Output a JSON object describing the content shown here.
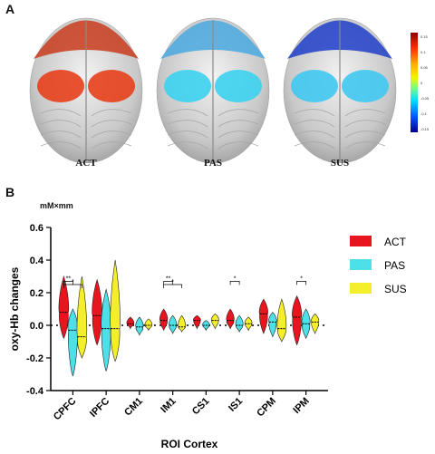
{
  "panel_a": {
    "label": "A",
    "brains": [
      {
        "condition": "ACT",
        "front_color": "#c83c1e",
        "roi_color": "#e8401c"
      },
      {
        "condition": "PAS",
        "front_color": "#4aa8e0",
        "roi_color": "#3cd2f0"
      },
      {
        "condition": "SUS",
        "front_color": "#2040c8",
        "roi_color": "#40c8f0"
      }
    ],
    "colorbar": {
      "ticks": [
        "0.15",
        "0.1",
        "0.05",
        "0",
        "-0.05",
        "-0.1",
        "-0.15"
      ]
    }
  },
  "panel_b": {
    "label": "B",
    "unit": "mM×mm"
  },
  "colors": {
    "ACT": "#e8141e",
    "PAS": "#4ee0e8",
    "SUS": "#f5ee2a"
  },
  "chart_data": {
    "type": "violin",
    "xlabel": "ROI Cortex",
    "ylabel": "oxy-Hb changes",
    "ylim": [
      -0.4,
      0.6
    ],
    "yticks": [
      "-0.4",
      "-0.2",
      "0.0",
      "0.2",
      "0.4",
      "0.6"
    ],
    "categories": [
      "CPFC",
      "IPFC",
      "CM1",
      "IM1",
      "CS1",
      "IS1",
      "CPM",
      "IPM"
    ],
    "series": [
      {
        "name": "ACT",
        "medians": [
          0.08,
          0.06,
          0.01,
          0.03,
          0.03,
          0.03,
          0.07,
          0.05
        ],
        "mins": [
          -0.08,
          -0.12,
          -0.02,
          -0.03,
          -0.02,
          -0.02,
          -0.05,
          -0.12
        ],
        "maxs": [
          0.3,
          0.28,
          0.05,
          0.1,
          0.06,
          0.1,
          0.16,
          0.18
        ]
      },
      {
        "name": "PAS",
        "medians": [
          -0.03,
          -0.02,
          -0.01,
          0.0,
          0.0,
          0.0,
          0.02,
          0.01
        ],
        "mins": [
          -0.31,
          -0.28,
          -0.06,
          -0.05,
          -0.03,
          -0.04,
          -0.07,
          -0.08
        ],
        "maxs": [
          0.1,
          0.22,
          0.05,
          0.06,
          0.03,
          0.06,
          0.08,
          0.1
        ]
      },
      {
        "name": "SUS",
        "medians": [
          -0.07,
          -0.02,
          0.0,
          -0.01,
          0.03,
          0.01,
          -0.02,
          0.02
        ],
        "mins": [
          -0.2,
          -0.22,
          -0.03,
          -0.04,
          -0.02,
          -0.03,
          -0.1,
          -0.05
        ],
        "maxs": [
          0.3,
          0.4,
          0.04,
          0.06,
          0.07,
          0.05,
          0.16,
          0.07
        ]
      }
    ],
    "significance": [
      {
        "category": "CPFC",
        "pairs": [
          [
            "ACT",
            "PAS"
          ],
          [
            "ACT",
            "SUS"
          ]
        ],
        "labels": [
          "**",
          "*"
        ]
      },
      {
        "category": "IM1",
        "pairs": [
          [
            "ACT",
            "PAS"
          ],
          [
            "ACT",
            "SUS"
          ]
        ],
        "labels": [
          "**",
          "*"
        ]
      },
      {
        "category": "IS1",
        "pairs": [
          [
            "ACT",
            "PAS"
          ]
        ],
        "labels": [
          "*"
        ]
      },
      {
        "category": "IPM",
        "pairs": [
          [
            "ACT",
            "PAS"
          ]
        ],
        "labels": [
          "*"
        ]
      }
    ],
    "legend": [
      "ACT",
      "PAS",
      "SUS"
    ],
    "legend_position": "right"
  }
}
